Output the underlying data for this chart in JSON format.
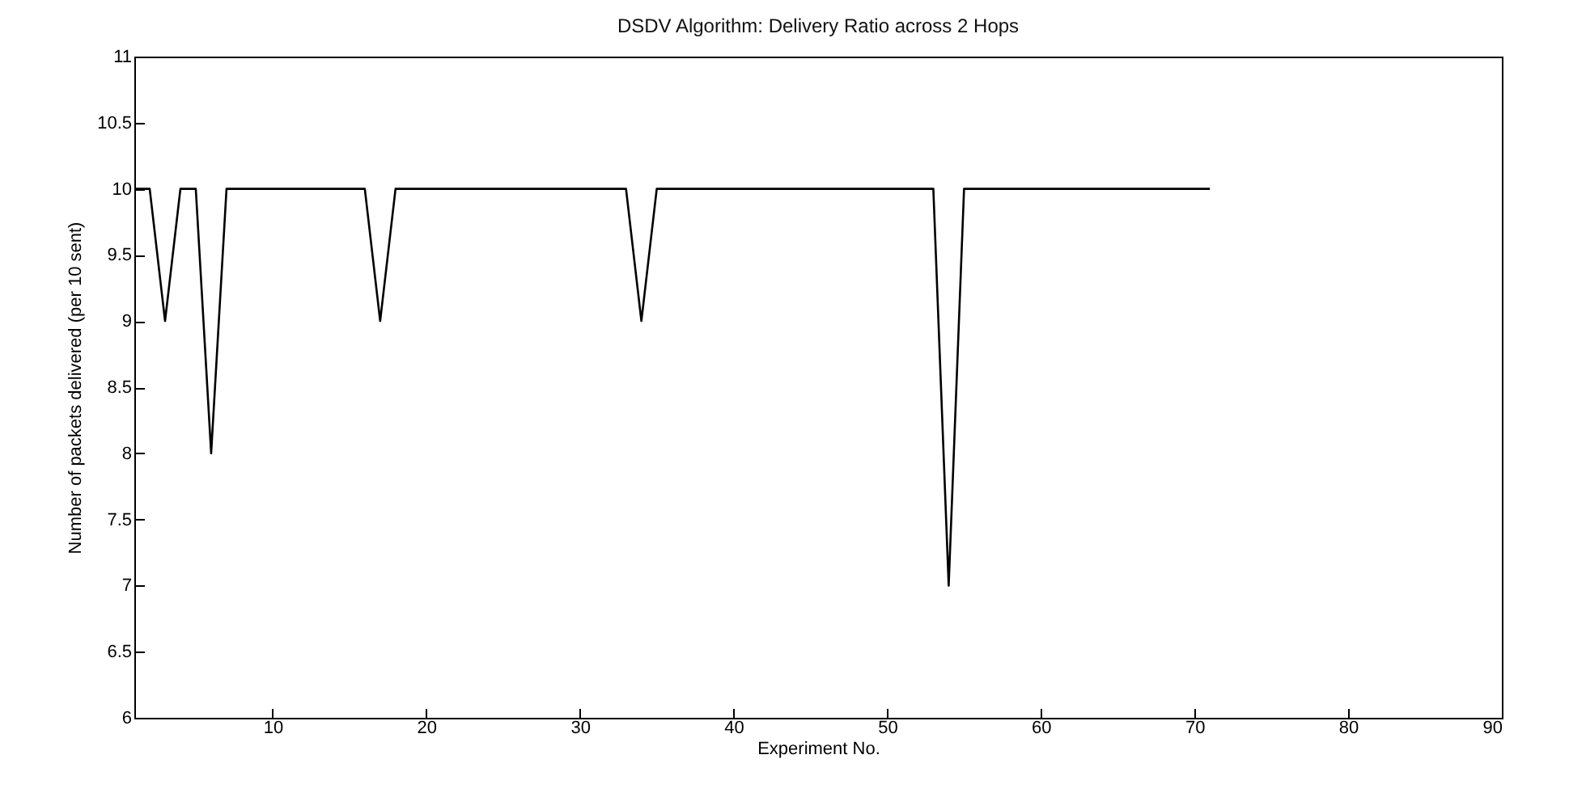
{
  "chart_data": {
    "type": "line",
    "title": "DSDV Algorithm: Delivery Ratio across 2 Hops",
    "xlabel": "Experiment No.",
    "ylabel": "Number of packets delivered (per 10 sent)",
    "x": [
      1,
      2,
      3,
      4,
      5,
      6,
      7,
      16,
      17,
      18,
      33,
      34,
      35,
      53,
      54,
      55,
      71
    ],
    "series": [
      {
        "color": "#000000",
        "values": [
          10,
          10,
          9,
          10,
          10,
          8,
          10,
          10,
          9,
          10,
          10,
          9,
          10,
          10,
          7,
          10,
          10
        ]
      }
    ],
    "xlim": [
      1,
      90
    ],
    "xticks": [
      10,
      20,
      30,
      40,
      50,
      60,
      70,
      80,
      90
    ],
    "ylim": [
      6,
      11
    ],
    "yticks": [
      6,
      6.5,
      7,
      7.5,
      8,
      8.5,
      9,
      9.5,
      10,
      10.5,
      11
    ],
    "grid": false,
    "marker": "none",
    "line_style": "solid"
  }
}
